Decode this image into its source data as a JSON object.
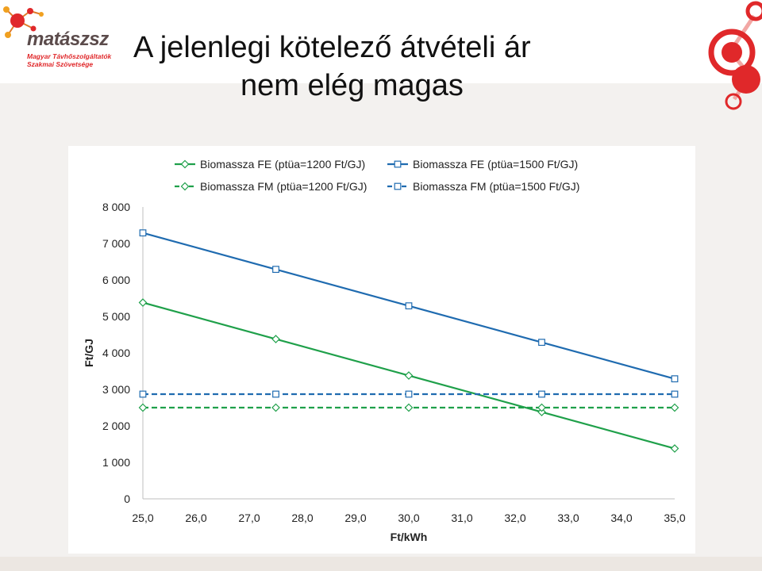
{
  "header": {
    "title_line1": "A jelenlegi kötelező átvételi ár",
    "title_line2": "nem elég magas"
  },
  "logo": {
    "name": "matászsz",
    "subtitle_line1": "Magyar Távhőszolgáltatók",
    "subtitle_line2": "Szakmai Szövetsége",
    "accent_color": "#e0282a",
    "icon": "molecule-icon"
  },
  "chart_data": {
    "type": "line",
    "xlabel": "Ft/kWh",
    "ylabel": "Ft/GJ",
    "xlim": [
      25,
      35
    ],
    "ylim": [
      0,
      8000
    ],
    "x_ticks": [
      "25,0",
      "26,0",
      "27,0",
      "28,0",
      "29,0",
      "30,0",
      "31,0",
      "32,0",
      "33,0",
      "34,0",
      "35,0"
    ],
    "y_ticks": [
      "0",
      "1 000",
      "2 000",
      "3 000",
      "4 000",
      "5 000",
      "6 000",
      "7 000",
      "8 000"
    ],
    "grid": false,
    "legend_position": "top",
    "series": [
      {
        "name": "Biomassza FE (ptüa=1200 Ft/GJ)",
        "color": "#1fa04a",
        "dashed": false,
        "marker": "diamond",
        "x": [
          25,
          27.5,
          30,
          32.5,
          35
        ],
        "y": [
          5380,
          4380,
          3380,
          2380,
          1380
        ]
      },
      {
        "name": "Biomassza FE (ptüa=1500 Ft/GJ)",
        "color": "#1f6bb0",
        "dashed": false,
        "marker": "square",
        "x": [
          25,
          27.5,
          30,
          32.5,
          35
        ],
        "y": [
          7290,
          6290,
          5290,
          4290,
          3290
        ]
      },
      {
        "name": "Biomassza FM (ptüa=1200 Ft/GJ)",
        "color": "#1fa04a",
        "dashed": true,
        "marker": "diamond",
        "x": [
          25,
          27.5,
          30,
          32.5,
          35
        ],
        "y": [
          2500,
          2500,
          2500,
          2500,
          2500
        ]
      },
      {
        "name": "Biomassza FM (ptüa=1500 Ft/GJ)",
        "color": "#1f6bb0",
        "dashed": true,
        "marker": "square",
        "x": [
          25,
          27.5,
          30,
          32.5,
          35
        ],
        "y": [
          2870,
          2870,
          2870,
          2870,
          2870
        ]
      }
    ]
  }
}
